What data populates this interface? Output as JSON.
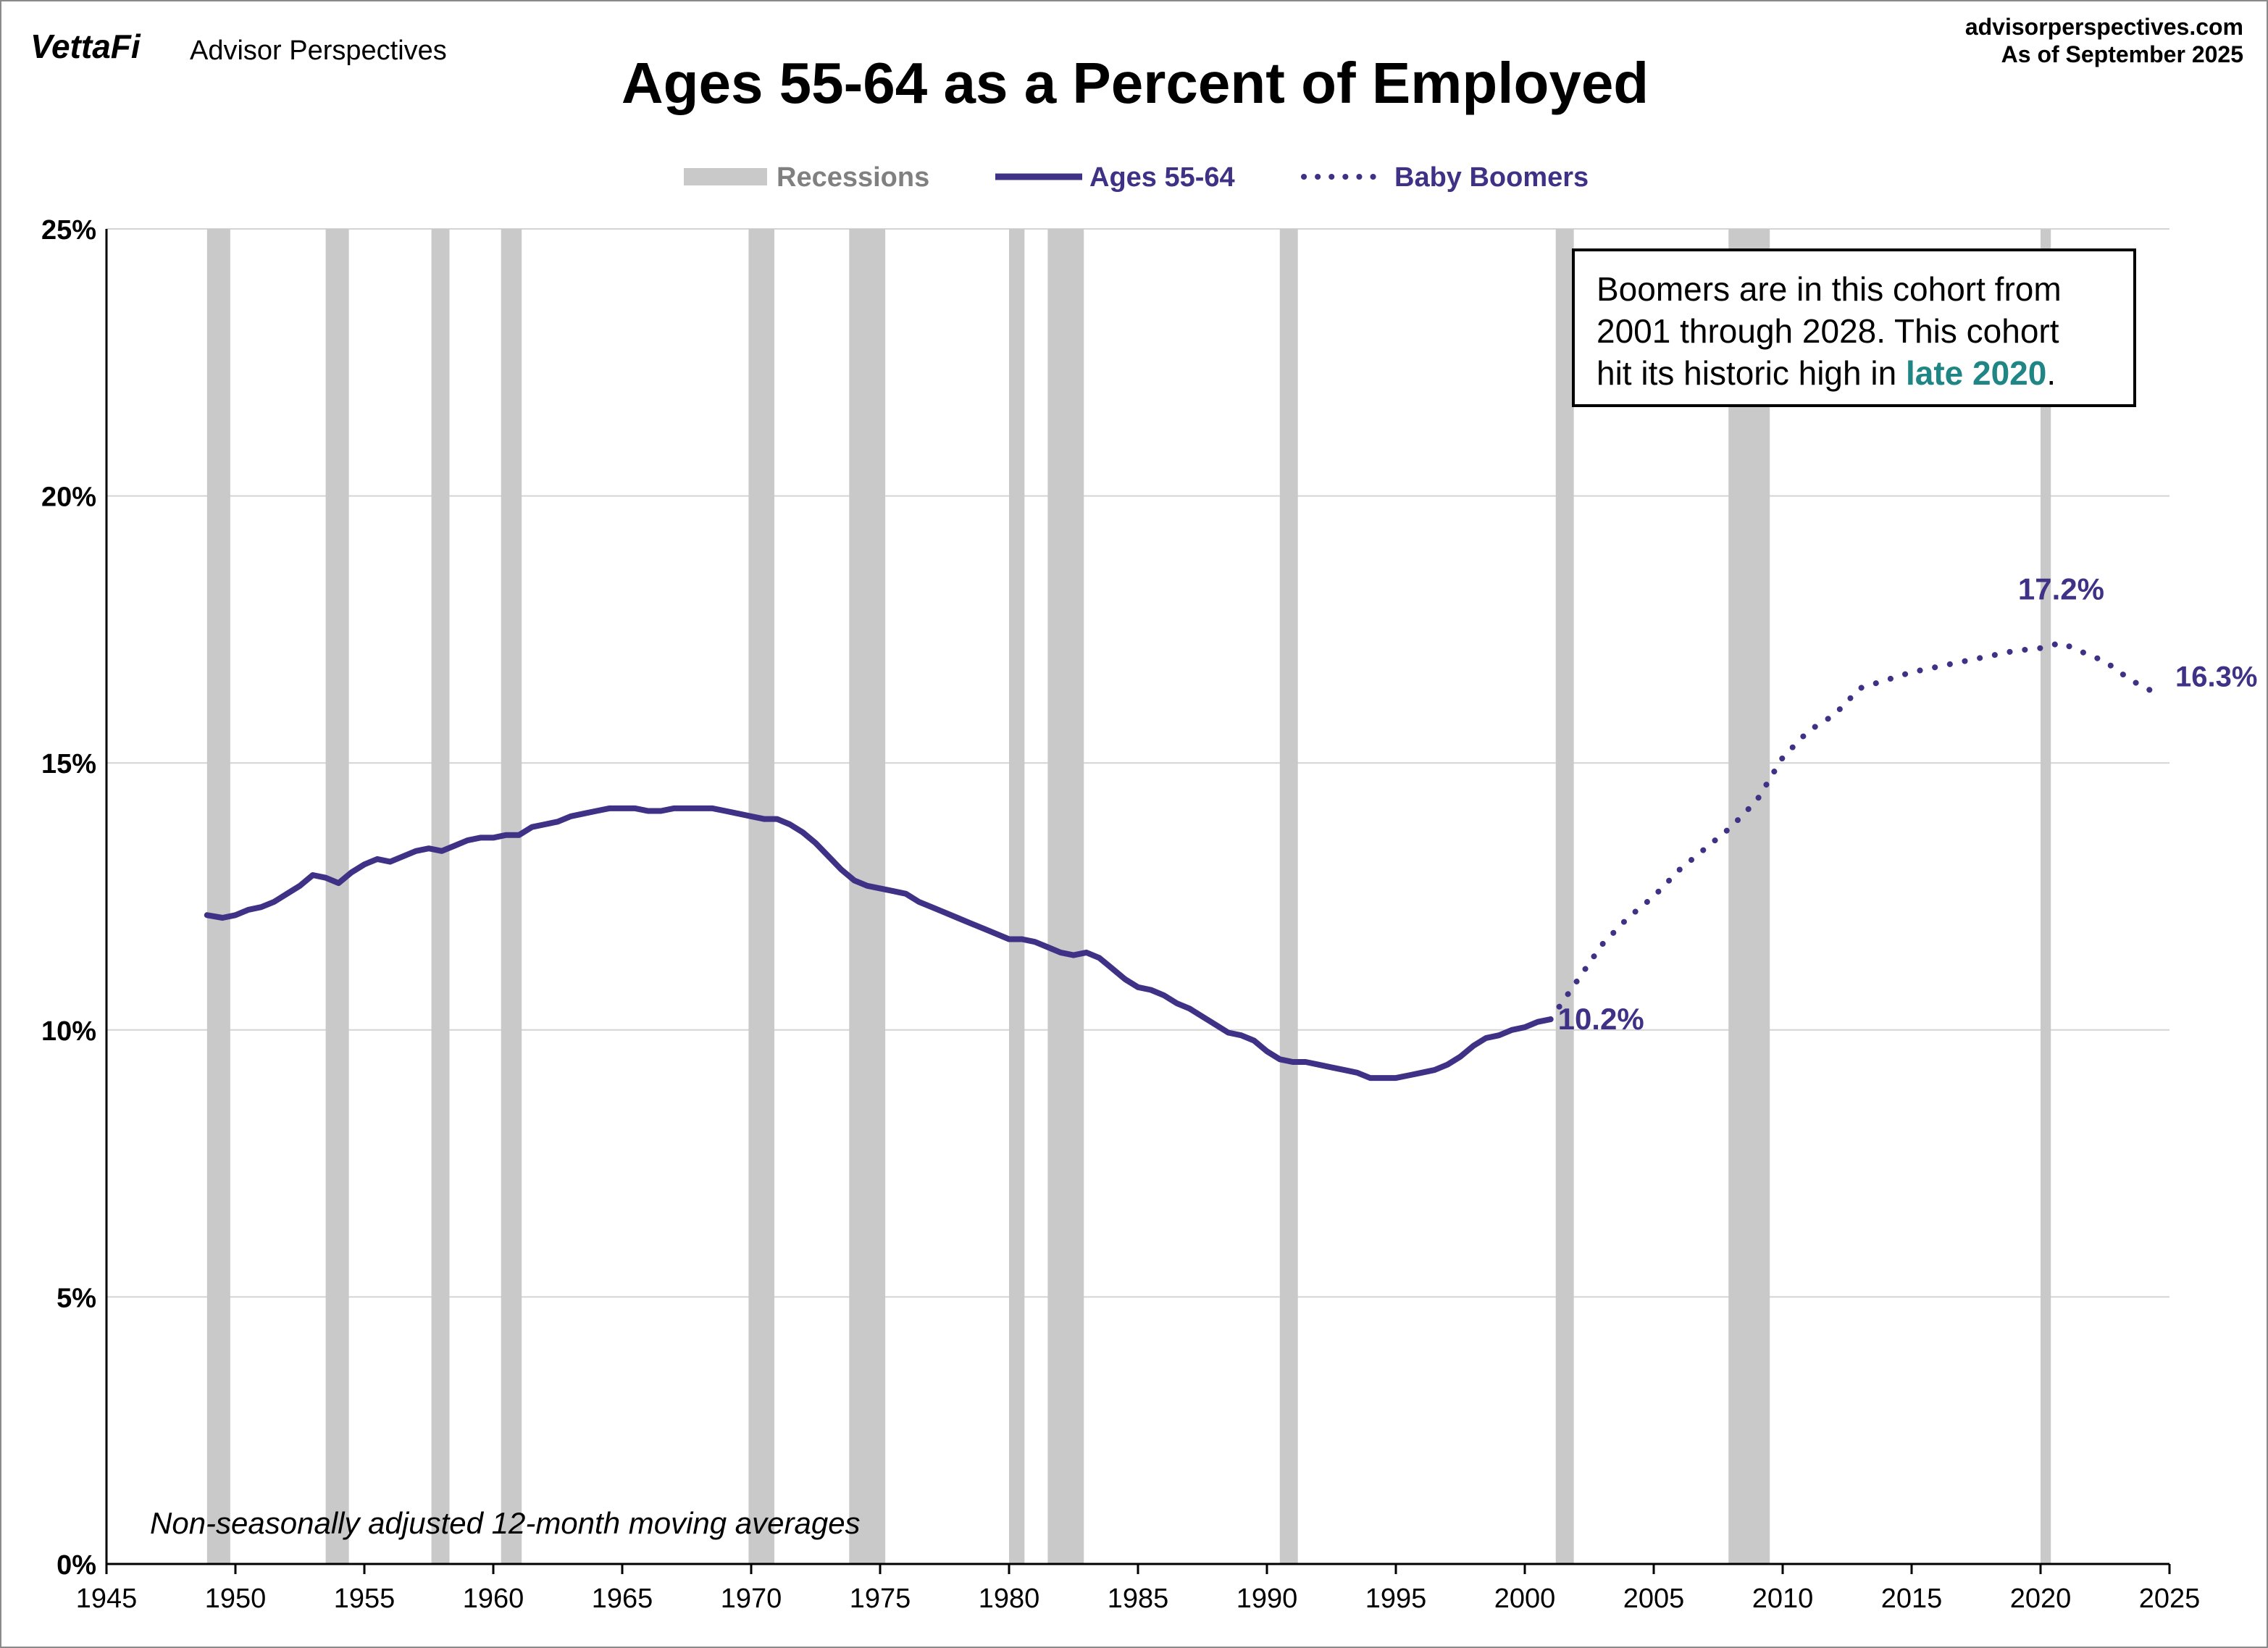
{
  "header": {
    "brand_primary": "VettaFi",
    "brand_secondary": "Advisor Perspectives",
    "site": "advisorperspectives.com",
    "as_of": "As of September 2025"
  },
  "colors": {
    "series": "#3f3185",
    "recession": "#c9c9c9",
    "recession_label": "#808080",
    "highlight": "#1f8585",
    "grid": "#d4d4d4",
    "axis": "#000000"
  },
  "annotation": {
    "line1": "Boomers are in this cohort from",
    "line2": "2001 through 2028. This cohort",
    "line3_prefix": "hit its historic high in ",
    "line3_highlight": "late 2020",
    "line3_suffix": "."
  },
  "chart_data": {
    "type": "line",
    "title": "Ages 55-64 as a Percent of Employed",
    "note": "Non-seasonally adjusted  12-month moving averages",
    "legend": [
      "Recessions",
      "Ages 55-64",
      "Baby Boomers"
    ],
    "legend_placement": "top-center",
    "xlim": [
      1945,
      2025
    ],
    "ylim": [
      0,
      25
    ],
    "x_ticks": [
      1945,
      1950,
      1955,
      1960,
      1965,
      1970,
      1975,
      1980,
      1985,
      1990,
      1995,
      2000,
      2005,
      2010,
      2015,
      2020,
      2025
    ],
    "y_ticks": [
      0,
      5,
      10,
      15,
      20,
      25
    ],
    "y_tick_labels": [
      "0%",
      "5%",
      "10%",
      "15%",
      "20%",
      "25%"
    ],
    "grid": "horizontal",
    "recessions": [
      [
        1948.9,
        1949.8
      ],
      [
        1953.5,
        1954.4
      ],
      [
        1957.6,
        1958.3
      ],
      [
        1960.3,
        1961.1
      ],
      [
        1969.9,
        1970.9
      ],
      [
        1973.8,
        1975.2
      ],
      [
        1980.0,
        1980.6
      ],
      [
        1981.5,
        1982.9
      ],
      [
        1990.5,
        1991.2
      ],
      [
        2001.2,
        2001.9
      ],
      [
        2007.9,
        2009.5
      ],
      [
        2020.0,
        2020.4
      ]
    ],
    "series": [
      {
        "name": "Ages 55-64",
        "style": "solid",
        "points": [
          [
            1948.9,
            12.15
          ],
          [
            1949.5,
            12.1
          ],
          [
            1950.0,
            12.15
          ],
          [
            1950.5,
            12.25
          ],
          [
            1951.0,
            12.3
          ],
          [
            1951.5,
            12.4
          ],
          [
            1952.0,
            12.55
          ],
          [
            1952.5,
            12.7
          ],
          [
            1953.0,
            12.9
          ],
          [
            1953.5,
            12.85
          ],
          [
            1954.0,
            12.75
          ],
          [
            1954.5,
            12.95
          ],
          [
            1955.0,
            13.1
          ],
          [
            1955.5,
            13.2
          ],
          [
            1956.0,
            13.15
          ],
          [
            1956.5,
            13.25
          ],
          [
            1957.0,
            13.35
          ],
          [
            1957.5,
            13.4
          ],
          [
            1958.0,
            13.35
          ],
          [
            1958.5,
            13.45
          ],
          [
            1959.0,
            13.55
          ],
          [
            1959.5,
            13.6
          ],
          [
            1960.0,
            13.6
          ],
          [
            1960.5,
            13.65
          ],
          [
            1961.0,
            13.65
          ],
          [
            1961.5,
            13.8
          ],
          [
            1962.0,
            13.85
          ],
          [
            1962.5,
            13.9
          ],
          [
            1963.0,
            14.0
          ],
          [
            1963.5,
            14.05
          ],
          [
            1964.0,
            14.1
          ],
          [
            1964.5,
            14.15
          ],
          [
            1965.0,
            14.15
          ],
          [
            1965.5,
            14.15
          ],
          [
            1966.0,
            14.1
          ],
          [
            1966.5,
            14.1
          ],
          [
            1967.0,
            14.15
          ],
          [
            1967.5,
            14.15
          ],
          [
            1968.0,
            14.15
          ],
          [
            1968.5,
            14.15
          ],
          [
            1969.0,
            14.1
          ],
          [
            1969.5,
            14.05
          ],
          [
            1970.0,
            14.0
          ],
          [
            1970.5,
            13.95
          ],
          [
            1971.0,
            13.95
          ],
          [
            1971.5,
            13.85
          ],
          [
            1972.0,
            13.7
          ],
          [
            1972.5,
            13.5
          ],
          [
            1973.0,
            13.25
          ],
          [
            1973.5,
            13.0
          ],
          [
            1974.0,
            12.8
          ],
          [
            1974.5,
            12.7
          ],
          [
            1975.0,
            12.65
          ],
          [
            1975.5,
            12.6
          ],
          [
            1976.0,
            12.55
          ],
          [
            1976.5,
            12.4
          ],
          [
            1977.0,
            12.3
          ],
          [
            1977.5,
            12.2
          ],
          [
            1978.0,
            12.1
          ],
          [
            1978.5,
            12.0
          ],
          [
            1979.0,
            11.9
          ],
          [
            1979.5,
            11.8
          ],
          [
            1980.0,
            11.7
          ],
          [
            1980.5,
            11.7
          ],
          [
            1981.0,
            11.65
          ],
          [
            1981.5,
            11.55
          ],
          [
            1982.0,
            11.45
          ],
          [
            1982.5,
            11.4
          ],
          [
            1983.0,
            11.45
          ],
          [
            1983.5,
            11.35
          ],
          [
            1984.0,
            11.15
          ],
          [
            1984.5,
            10.95
          ],
          [
            1985.0,
            10.8
          ],
          [
            1985.5,
            10.75
          ],
          [
            1986.0,
            10.65
          ],
          [
            1986.5,
            10.5
          ],
          [
            1987.0,
            10.4
          ],
          [
            1987.5,
            10.25
          ],
          [
            1988.0,
            10.1
          ],
          [
            1988.5,
            9.95
          ],
          [
            1989.0,
            9.9
          ],
          [
            1989.5,
            9.8
          ],
          [
            1990.0,
            9.6
          ],
          [
            1990.5,
            9.45
          ],
          [
            1991.0,
            9.4
          ],
          [
            1991.5,
            9.4
          ],
          [
            1992.0,
            9.35
          ],
          [
            1992.5,
            9.3
          ],
          [
            1993.0,
            9.25
          ],
          [
            1993.5,
            9.2
          ],
          [
            1994.0,
            9.1
          ],
          [
            1994.5,
            9.1
          ],
          [
            1995.0,
            9.1
          ],
          [
            1995.5,
            9.15
          ],
          [
            1996.0,
            9.2
          ],
          [
            1996.5,
            9.25
          ],
          [
            1997.0,
            9.35
          ],
          [
            1997.5,
            9.5
          ],
          [
            1998.0,
            9.7
          ],
          [
            1998.5,
            9.85
          ],
          [
            1999.0,
            9.9
          ],
          [
            1999.5,
            10.0
          ],
          [
            2000.0,
            10.05
          ],
          [
            2000.5,
            10.15
          ],
          [
            2001.0,
            10.2
          ]
        ],
        "end_label": "10.2%"
      },
      {
        "name": "Baby Boomers",
        "style": "dotted",
        "points": [
          [
            2001.0,
            10.2
          ],
          [
            2002.0,
            10.9
          ],
          [
            2003.0,
            11.6
          ],
          [
            2004.0,
            12.1
          ],
          [
            2005.0,
            12.5
          ],
          [
            2006.0,
            13.0
          ],
          [
            2007.0,
            13.4
          ],
          [
            2008.0,
            13.8
          ],
          [
            2009.0,
            14.3
          ],
          [
            2010.0,
            15.1
          ],
          [
            2011.0,
            15.6
          ],
          [
            2012.0,
            15.9
          ],
          [
            2013.0,
            16.4
          ],
          [
            2014.0,
            16.55
          ],
          [
            2015.0,
            16.7
          ],
          [
            2016.0,
            16.8
          ],
          [
            2017.0,
            16.9
          ],
          [
            2018.0,
            17.0
          ],
          [
            2019.0,
            17.1
          ],
          [
            2020.0,
            17.15
          ],
          [
            2020.8,
            17.25
          ],
          [
            2021.5,
            17.1
          ],
          [
            2022.5,
            16.9
          ],
          [
            2023.5,
            16.55
          ],
          [
            2024.5,
            16.3
          ]
        ],
        "peak_label": "17.2%",
        "end_label": "16.3%"
      }
    ]
  }
}
